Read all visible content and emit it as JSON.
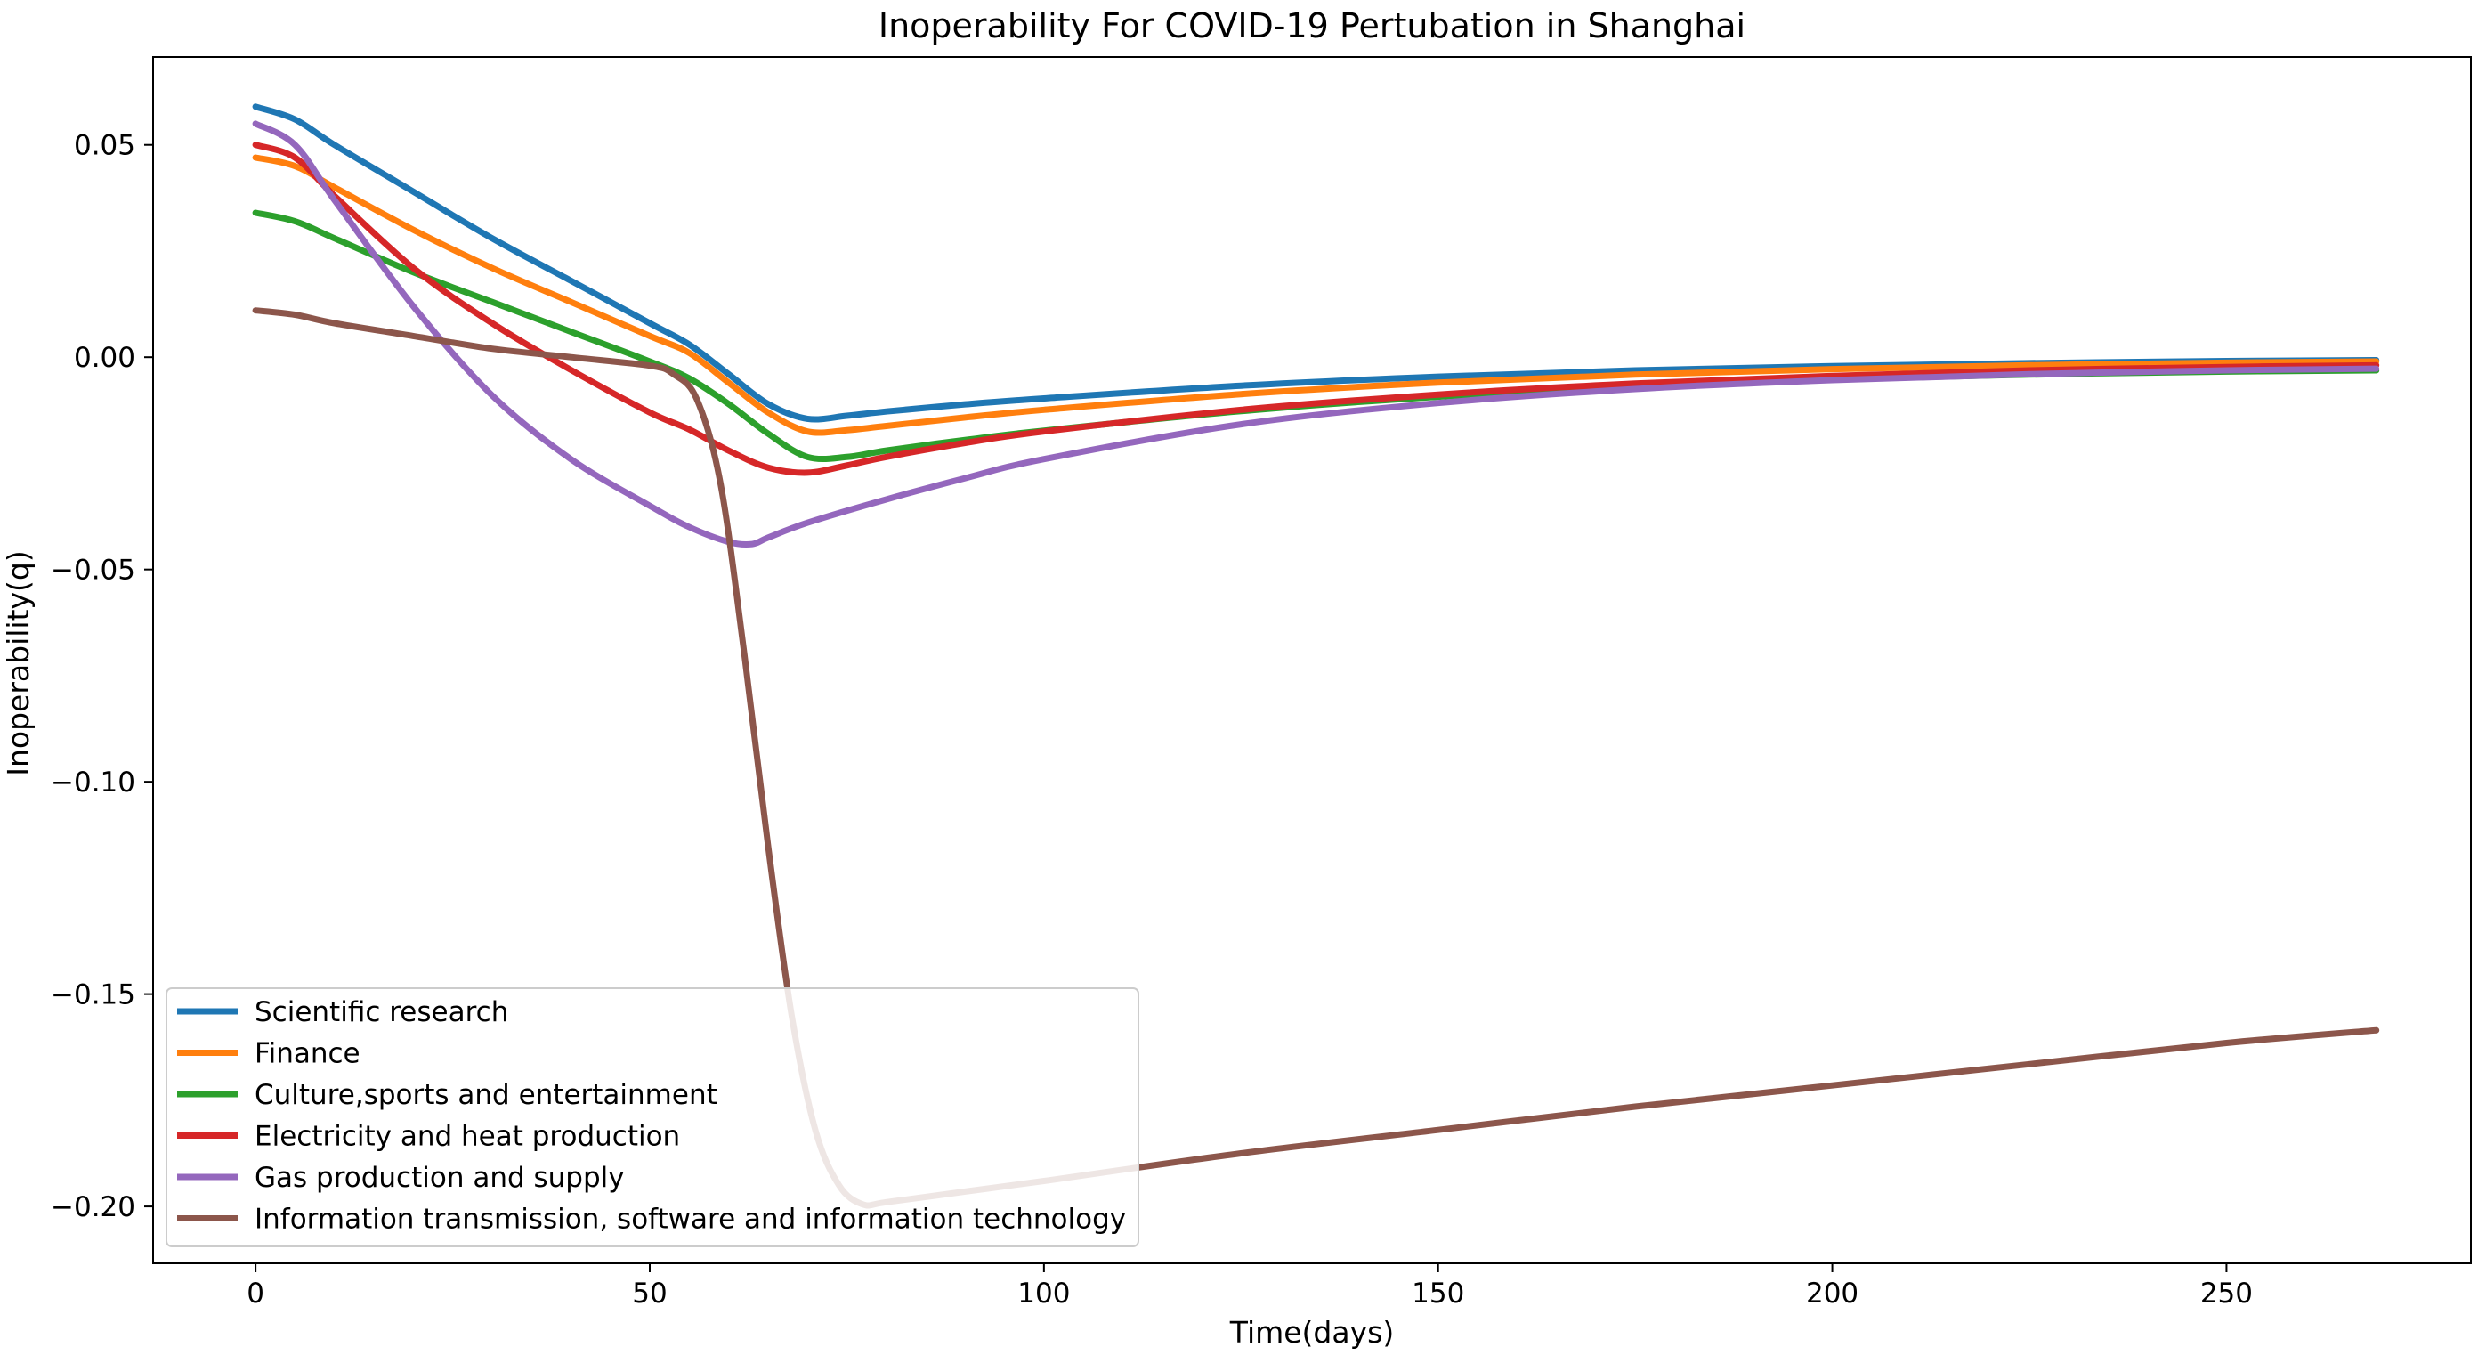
{
  "chart_data": {
    "type": "line",
    "title": "Inoperability For COVID-19 Pertubation in Shanghai",
    "xlabel": "Time(days)",
    "ylabel": "Inoperability(q)",
    "xlim": [
      -13,
      281
    ],
    "ylim": [
      -0.2134,
      0.0707
    ],
    "xticks": [
      0,
      50,
      100,
      150,
      200,
      250
    ],
    "xtick_labels": [
      "0",
      "50",
      "100",
      "150",
      "200",
      "250"
    ],
    "yticks": [
      0.05,
      0.0,
      -0.05,
      -0.1,
      -0.15,
      -0.2
    ],
    "ytick_labels": [
      "0.05",
      "0.00",
      "−0.05",
      "−0.10",
      "−0.15",
      "−0.20"
    ],
    "grid": false,
    "legend_position": "lower-left",
    "series": [
      {
        "name": "Scientific research",
        "color": "#1f77b4",
        "points": [
          [
            0,
            0.059
          ],
          [
            5,
            0.056
          ],
          [
            10,
            0.05
          ],
          [
            20,
            0.039
          ],
          [
            30,
            0.028
          ],
          [
            40,
            0.018
          ],
          [
            50,
            0.008
          ],
          [
            55,
            0.003
          ],
          [
            60,
            -0.004
          ],
          [
            65,
            -0.011
          ],
          [
            70,
            -0.0145
          ],
          [
            75,
            -0.0138
          ],
          [
            80,
            -0.0128
          ],
          [
            90,
            -0.0111
          ],
          [
            100,
            -0.0097
          ],
          [
            125,
            -0.0067
          ],
          [
            150,
            -0.0046
          ],
          [
            175,
            -0.0031
          ],
          [
            200,
            -0.0021
          ],
          [
            225,
            -0.0014
          ],
          [
            250,
            -0.0009
          ],
          [
            269,
            -0.0007
          ]
        ]
      },
      {
        "name": "Finance",
        "color": "#ff7f0e",
        "points": [
          [
            0,
            0.047
          ],
          [
            5,
            0.045
          ],
          [
            10,
            0.04
          ],
          [
            20,
            0.03
          ],
          [
            30,
            0.021
          ],
          [
            40,
            0.013
          ],
          [
            50,
            0.005
          ],
          [
            55,
            0.001
          ],
          [
            60,
            -0.006
          ],
          [
            65,
            -0.013
          ],
          [
            70,
            -0.0175
          ],
          [
            75,
            -0.0172
          ],
          [
            80,
            -0.0162
          ],
          [
            90,
            -0.0142
          ],
          [
            100,
            -0.0124
          ],
          [
            125,
            -0.0087
          ],
          [
            150,
            -0.006
          ],
          [
            175,
            -0.0041
          ],
          [
            200,
            -0.0028
          ],
          [
            225,
            -0.0019
          ],
          [
            250,
            -0.0013
          ],
          [
            269,
            -0.001
          ]
        ]
      },
      {
        "name": "Culture,sports and entertainment",
        "color": "#2ca02c",
        "points": [
          [
            0,
            0.034
          ],
          [
            5,
            0.032
          ],
          [
            10,
            0.028
          ],
          [
            20,
            0.02
          ],
          [
            30,
            0.013
          ],
          [
            40,
            0.006
          ],
          [
            50,
            -0.001
          ],
          [
            55,
            -0.005
          ],
          [
            60,
            -0.011
          ],
          [
            65,
            -0.018
          ],
          [
            70,
            -0.0235
          ],
          [
            75,
            -0.0235
          ],
          [
            80,
            -0.022
          ],
          [
            90,
            -0.0195
          ],
          [
            100,
            -0.0173
          ],
          [
            125,
            -0.0127
          ],
          [
            150,
            -0.0093
          ],
          [
            175,
            -0.0069
          ],
          [
            200,
            -0.0052
          ],
          [
            225,
            -0.0041
          ],
          [
            250,
            -0.0034
          ],
          [
            269,
            -0.0031
          ]
        ]
      },
      {
        "name": "Electricity and heat production",
        "color": "#d62728",
        "points": [
          [
            0,
            0.05
          ],
          [
            5,
            0.047
          ],
          [
            10,
            0.038
          ],
          [
            20,
            0.021
          ],
          [
            30,
            0.008
          ],
          [
            40,
            -0.003
          ],
          [
            50,
            -0.013
          ],
          [
            55,
            -0.017
          ],
          [
            60,
            -0.022
          ],
          [
            65,
            -0.026
          ],
          [
            70,
            -0.0272
          ],
          [
            75,
            -0.0255
          ],
          [
            80,
            -0.0235
          ],
          [
            90,
            -0.0202
          ],
          [
            100,
            -0.0175
          ],
          [
            125,
            -0.0124
          ],
          [
            150,
            -0.0088
          ],
          [
            175,
            -0.0062
          ],
          [
            200,
            -0.0044
          ],
          [
            225,
            -0.0031
          ],
          [
            250,
            -0.0023
          ],
          [
            269,
            -0.0019
          ]
        ]
      },
      {
        "name": "Gas production and supply",
        "color": "#9467bd",
        "points": [
          [
            0,
            0.055
          ],
          [
            5,
            0.05
          ],
          [
            10,
            0.037
          ],
          [
            20,
            0.012
          ],
          [
            30,
            -0.009
          ],
          [
            40,
            -0.024
          ],
          [
            50,
            -0.035
          ],
          [
            55,
            -0.04
          ],
          [
            60,
            -0.0435
          ],
          [
            63,
            -0.044
          ],
          [
            65,
            -0.0425
          ],
          [
            70,
            -0.039
          ],
          [
            80,
            -0.0335
          ],
          [
            90,
            -0.0285
          ],
          [
            100,
            -0.024
          ],
          [
            125,
            -0.0158
          ],
          [
            150,
            -0.0108
          ],
          [
            175,
            -0.0075
          ],
          [
            200,
            -0.0054
          ],
          [
            225,
            -0.004
          ],
          [
            250,
            -0.0031
          ],
          [
            269,
            -0.0027
          ]
        ]
      },
      {
        "name": "Information transmission, software and information technology",
        "color": "#8c564b",
        "points": [
          [
            0,
            0.011
          ],
          [
            5,
            0.01
          ],
          [
            10,
            0.008
          ],
          [
            20,
            0.005
          ],
          [
            30,
            0.002
          ],
          [
            40,
            0.0
          ],
          [
            50,
            -0.002
          ],
          [
            53,
            -0.004
          ],
          [
            56,
            -0.01
          ],
          [
            59,
            -0.03
          ],
          [
            62,
            -0.07
          ],
          [
            65,
            -0.115
          ],
          [
            68,
            -0.155
          ],
          [
            71,
            -0.182
          ],
          [
            74,
            -0.195
          ],
          [
            77,
            -0.1995
          ],
          [
            80,
            -0.199
          ],
          [
            90,
            -0.1965
          ],
          [
            100,
            -0.194
          ],
          [
            125,
            -0.1875
          ],
          [
            150,
            -0.182
          ],
          [
            175,
            -0.1765
          ],
          [
            200,
            -0.1715
          ],
          [
            225,
            -0.1665
          ],
          [
            250,
            -0.1615
          ],
          [
            269,
            -0.1585
          ]
        ]
      }
    ]
  }
}
